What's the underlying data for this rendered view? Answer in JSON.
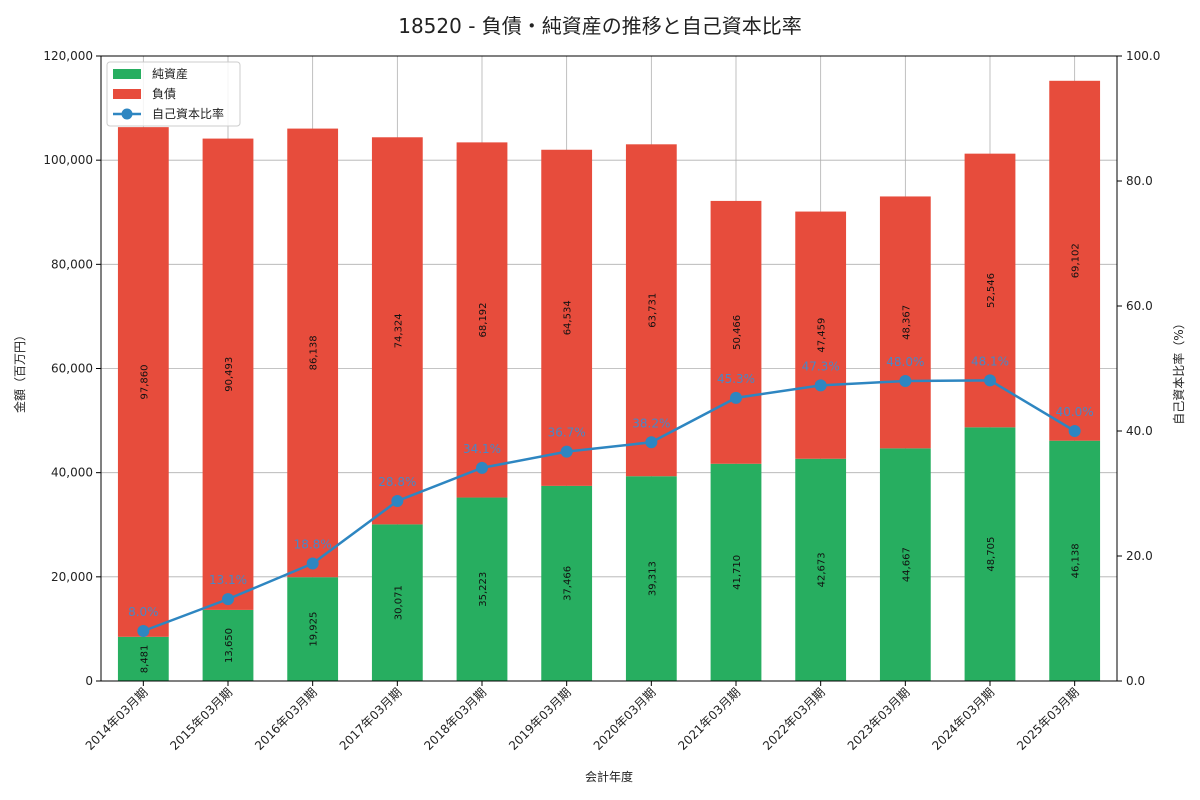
{
  "chart_data": {
    "type": "bar",
    "title": "18520 - 負債・純資産の推移と自己資本比率",
    "xlabel": "会計年度",
    "ylabel": "金額（百万円）",
    "y2label": "自己資本比率（%）",
    "ylim": [
      0,
      120000
    ],
    "y2lim": [
      0,
      100
    ],
    "yticks": [
      0,
      20000,
      40000,
      60000,
      80000,
      100000,
      120000
    ],
    "yticklabels": [
      "0",
      "20,000",
      "40,000",
      "60,000",
      "80,000",
      "100,000",
      "120,000"
    ],
    "y2ticks": [
      0,
      20,
      40,
      60,
      80,
      100
    ],
    "y2ticklabels": [
      "0.0",
      "20.0",
      "40.0",
      "60.0",
      "80.0",
      "100.0"
    ],
    "grid": true,
    "legend_position": "top-left",
    "categories": [
      "2014年03月期",
      "2015年03月期",
      "2016年03月期",
      "2017年03月期",
      "2018年03月期",
      "2019年03月期",
      "2020年03月期",
      "2021年03月期",
      "2022年03月期",
      "2023年03月期",
      "2024年03月期",
      "2025年03月期"
    ],
    "series": [
      {
        "name": "純資産",
        "kind": "bar",
        "color": "#27ae60",
        "values": [
          8481,
          13650,
          19925,
          30071,
          35223,
          37466,
          39313,
          41710,
          42673,
          44667,
          48705,
          46138
        ],
        "labels": [
          "8,481",
          "13,650",
          "19,925",
          "30,071",
          "35,223",
          "37,466",
          "39,313",
          "41,710",
          "42,673",
          "44,667",
          "48,705",
          "46,138"
        ]
      },
      {
        "name": "負債",
        "kind": "bar",
        "color": "#e74c3c",
        "values": [
          97860,
          90493,
          86138,
          74324,
          68192,
          64534,
          63731,
          50466,
          47459,
          48367,
          52546,
          69102
        ],
        "labels": [
          "97,860",
          "90,493",
          "86,138",
          "74,324",
          "68,192",
          "64,534",
          "63,731",
          "50,466",
          "47,459",
          "48,367",
          "52,546",
          "69,102"
        ]
      },
      {
        "name": "自己資本比率",
        "kind": "line",
        "axis": "right",
        "color": "#2e86c1",
        "values": [
          8.0,
          13.1,
          18.8,
          28.8,
          34.1,
          36.7,
          38.2,
          45.3,
          47.3,
          48.0,
          48.1,
          40.0
        ],
        "labels": [
          "8.0%",
          "13.1%",
          "18.8%",
          "28.8%",
          "34.1%",
          "36.7%",
          "38.2%",
          "45.3%",
          "47.3%",
          "48.0%",
          "48.1%",
          "40.0%"
        ]
      }
    ]
  }
}
